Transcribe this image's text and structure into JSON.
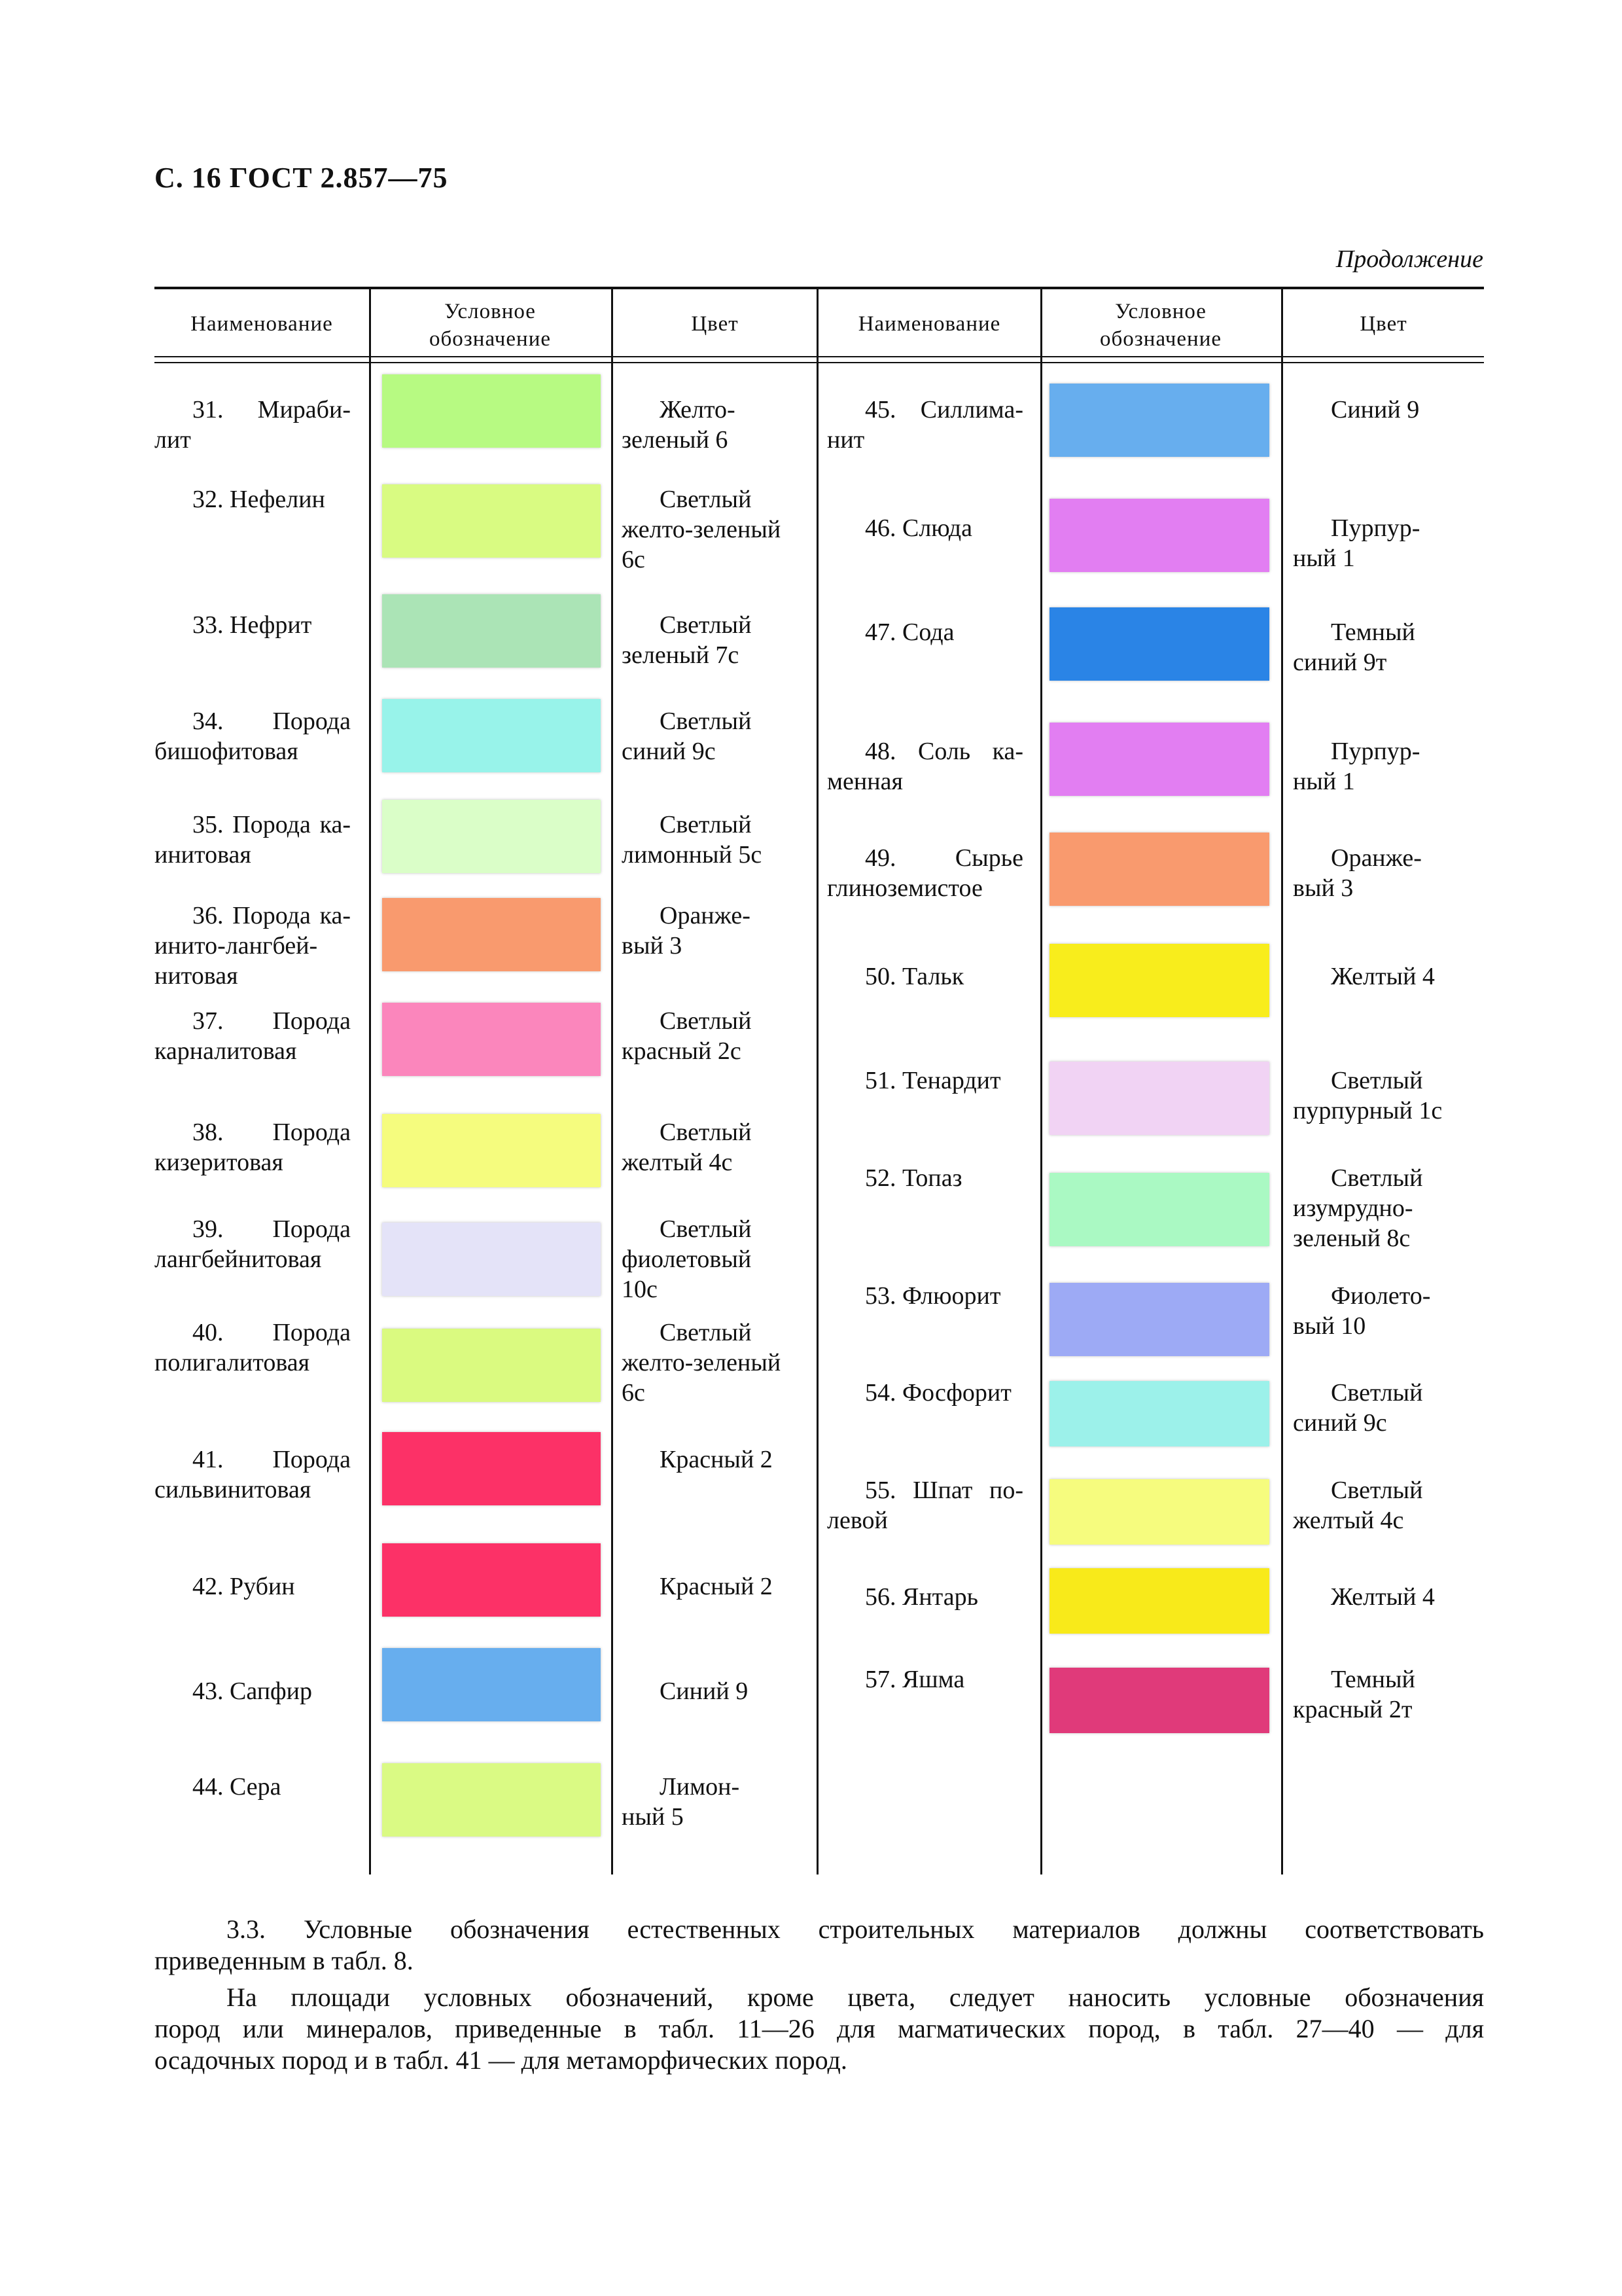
{
  "header": {
    "page_title": "С. 16 ГОСТ 2.857—75",
    "continuation": "Продолжение"
  },
  "table": {
    "columns": [
      "Наименование",
      "Условное обозначение",
      "Цвет",
      "Наименование",
      "Условное обозначение",
      "Цвет"
    ],
    "left_rows": [
      {
        "name": [
          "31. Мираби-",
          "лит"
        ],
        "swatch": "#b7fa82",
        "color": [
          "Желто-",
          "зеленый 6"
        ]
      },
      {
        "name": [
          "32. Нефелин"
        ],
        "swatch": "#d9fb82",
        "color": [
          "Светлый",
          "желто-зеленый",
          "6с"
        ]
      },
      {
        "name": [
          "33. Нефрит"
        ],
        "swatch": "#abe4b6",
        "color": [
          "Светлый",
          "зеленый 7с"
        ]
      },
      {
        "name": [
          "34. Порода",
          "бишофитовая"
        ],
        "swatch": "#98f3ea",
        "color": [
          "Светлый",
          "синий 9с"
        ]
      },
      {
        "name": [
          "35. Порода ка-",
          "инитовая"
        ],
        "swatch": "#dafec8",
        "color": [
          "Светлый",
          "лимонный 5с"
        ]
      },
      {
        "name": [
          "36. Порода ка-",
          "инито-лангбей-",
          "нитовая"
        ],
        "swatch": "#f99a6e",
        "color": [
          "Оранже-",
          "вый 3"
        ]
      },
      {
        "name": [
          "37. Порода",
          "карналитовая"
        ],
        "swatch": "#fb86bc",
        "color": [
          "Светлый",
          "красный 2с"
        ]
      },
      {
        "name": [
          "38. Порода",
          "кизеритовая"
        ],
        "swatch": "#f5fc7e",
        "color": [
          "Светлый",
          "желтый 4с"
        ]
      },
      {
        "name": [
          "39. Порода",
          "лангбейнитовая"
        ],
        "swatch": "#e4e3f8",
        "color": [
          "Светлый",
          "фиолетовый",
          "10с"
        ]
      },
      {
        "name": [
          "40. Порода",
          "полигалитовая"
        ],
        "swatch": "#dafa80",
        "color": [
          "Светлый",
          "желто-зеленый",
          "6с"
        ]
      },
      {
        "name": [
          "41. Порода",
          "сильвинитовая"
        ],
        "swatch": "#fc3167",
        "color": [
          "Красный 2"
        ]
      },
      {
        "name": [
          "42. Рубин"
        ],
        "swatch": "#fc3167",
        "color": [
          "Красный 2"
        ]
      },
      {
        "name": [
          "43. Сапфир"
        ],
        "swatch": "#67aeee",
        "color": [
          "Синий 9"
        ]
      },
      {
        "name": [
          "44. Сера"
        ],
        "swatch": "#dafa84",
        "color": [
          "Лимон-",
          "ный 5"
        ]
      }
    ],
    "right_rows": [
      {
        "name": [
          "45. Силлима-",
          "нит"
        ],
        "swatch": "#67aeee",
        "color": [
          "Синий 9"
        ]
      },
      {
        "name": [
          "46. Слюда"
        ],
        "swatch": "#e27ef2",
        "color": [
          "Пурпур-",
          "ный 1"
        ]
      },
      {
        "name": [
          "47. Сода"
        ],
        "swatch": "#2a84e6",
        "color": [
          "Темный",
          "синий 9т"
        ]
      },
      {
        "name": [
          "48. Соль ка-",
          "менная"
        ],
        "swatch": "#e27ef2",
        "color": [
          "Пурпур-",
          "ный 1"
        ]
      },
      {
        "name": [
          "49. Сырье",
          "глиноземистое"
        ],
        "swatch": "#f99a6e",
        "color": [
          "Оранже-",
          "вый 3"
        ]
      },
      {
        "name": [
          "50. Тальк"
        ],
        "swatch": "#f8ed1c",
        "color": [
          "Желтый 4"
        ]
      },
      {
        "name": [
          "51. Тенардит"
        ],
        "swatch": "#f1d3f4",
        "color": [
          "Светлый",
          "пурпурный 1с"
        ]
      },
      {
        "name": [
          "52. Топаз"
        ],
        "swatch": "#aaf9c3",
        "color": [
          "Светлый",
          "изумрудно-",
          "зеленый 8с"
        ]
      },
      {
        "name": [
          "53. Флюорит"
        ],
        "swatch": "#9daaf5",
        "color": [
          "Фиолето-",
          "вый 10"
        ]
      },
      {
        "name": [
          "54. Фосфорит"
        ],
        "swatch": "#9cf1ea",
        "color": [
          "Светлый",
          "синий 9с"
        ]
      },
      {
        "name": [
          "55. Шпат по-",
          "левой"
        ],
        "swatch": "#f6fc7e",
        "color": [
          "Светлый",
          "желтый 4с"
        ]
      },
      {
        "name": [
          "56. Янтарь"
        ],
        "swatch": "#f8ea1a",
        "color": [
          "Желтый 4"
        ]
      },
      {
        "name": [
          "57. Яшма"
        ],
        "swatch": "#e03a7a",
        "color": [
          "Темный",
          "красный 2т"
        ]
      }
    ]
  },
  "paragraphs": [
    [
      "3.3. Условные обозначения естественных строительных материалов должны соответствовать",
      "приведенным в табл. 8."
    ],
    [
      "На площади условных обозначений, кроме цвета, следует наносить условные обозначения",
      "пород или минералов, приведенные в табл. 11—26 для магматических пород, в табл. 27—40 — для",
      "осадочных пород и в табл. 41 — для метаморфических пород."
    ]
  ]
}
